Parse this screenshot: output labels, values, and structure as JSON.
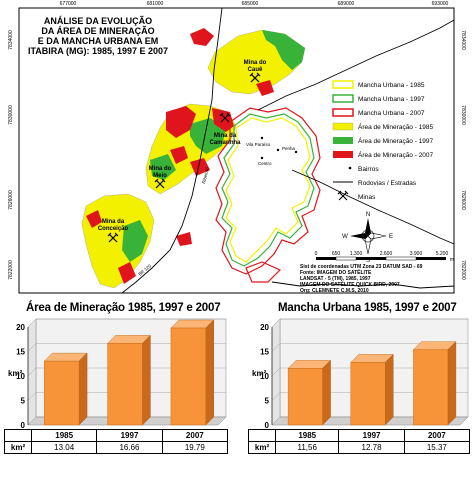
{
  "map": {
    "title_lines": [
      "ANÁLISE DA EVOLUÇÃO",
      "DA ÁREA DE MINERAÇÃO",
      "E DA MANCHA URBANA EM",
      "ITABIRA (MG): 1985, 1997 E 2007"
    ],
    "top_ticks": [
      "677000",
      "681000",
      "685000",
      "689000",
      "693000"
    ],
    "left_ticks": [
      "7834000",
      "7830000",
      "7826000",
      "7822000"
    ],
    "right_ticks": [
      "7834000",
      "7830000",
      "7826000",
      "7822000"
    ],
    "places": {
      "caue": [
        "Mina do",
        "Cauê"
      ],
      "conceicao": [
        "Mina da",
        "Conceição"
      ],
      "meio": [
        "Mina do",
        "Meio"
      ],
      "periquito": [
        "Mina do",
        "Periquito"
      ],
      "centro": "Centro",
      "vila_paraiso": "Vila Paraíso",
      "camarinha": [
        "Mina da",
        "Camarinha"
      ],
      "ribeirao": "Ribeirão",
      "penha": "Penha",
      "hwy": "BR 120"
    },
    "legend": {
      "items": [
        {
          "label": "Mancha Urbana - 1985",
          "color": "#f3f000",
          "kind": "outline"
        },
        {
          "label": "Mancha Urbana - 1997",
          "color": "#39b23a",
          "kind": "outline"
        },
        {
          "label": "Mancha Urbana - 2007",
          "color": "#e0141c",
          "kind": "outline"
        },
        {
          "label": "Área de Mineração - 1985",
          "color": "#f3f000",
          "kind": "fill"
        },
        {
          "label": "Área de Mineração - 1997",
          "color": "#39b23a",
          "kind": "fill"
        },
        {
          "label": "Área de Mineração - 2007",
          "color": "#e0141c",
          "kind": "fill"
        },
        {
          "label": "Bairros",
          "kind": "point"
        },
        {
          "label": "Rodovias / Estradas",
          "kind": "line"
        },
        {
          "label": "Minas",
          "kind": "mine"
        }
      ]
    },
    "north_letters": {
      "n": "N",
      "s": "S",
      "e": "E",
      "w": "W"
    },
    "scale": {
      "labels": [
        "0",
        "650",
        "1.300",
        "2.600",
        "3.900",
        "5.200"
      ],
      "unit": "m"
    },
    "credits": [
      "Sist de coordenadas UTM Zona 23 DATUM SAD - 69",
      "Fonte: IMAGEM DO SATÉLITE",
      "LANDSAT - 5 (TM), 1985, 1997",
      "IMAGEM DO SATÉLITE QUICK BIRD, 2007",
      "Org: CLEMNETE C.M.S, 2010"
    ]
  },
  "chart_data": [
    {
      "type": "bar",
      "title": "Área de Mineração 1985, 1997 e 2007",
      "categories": [
        "1985",
        "1997",
        "2007"
      ],
      "values": [
        13.04,
        16.66,
        19.79
      ],
      "value_labels": [
        "13.04",
        "16.66",
        "19.79"
      ],
      "ylabel": "km²",
      "table_row_label": "km²",
      "ylim": [
        0,
        20
      ],
      "yticks": [
        0,
        5,
        10,
        15,
        20
      ],
      "bar_color": "#f7943a",
      "grid": true
    },
    {
      "type": "bar",
      "title": "Mancha Urbana 1985, 1997 e 2007",
      "categories": [
        "1985",
        "1997",
        "2007"
      ],
      "values": [
        11.56,
        12.78,
        15.37
      ],
      "value_labels": [
        "11,56",
        "12.78",
        "15.37"
      ],
      "ylabel": "km²",
      "table_row_label": "km²",
      "ylim": [
        0,
        20
      ],
      "yticks": [
        0,
        5,
        10,
        15,
        20
      ],
      "bar_color": "#f7943a",
      "grid": true
    }
  ]
}
